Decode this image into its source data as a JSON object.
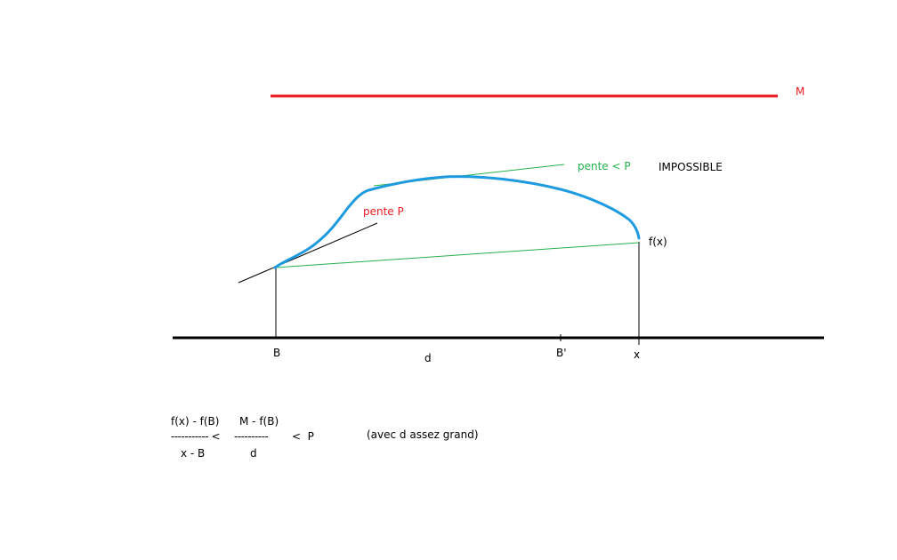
{
  "labels": {
    "m": "M",
    "pente_inf_p": "pente < P",
    "impossible": "IMPOSSIBLE",
    "pente_p": "pente P",
    "fx": "f(x)",
    "b": "B",
    "d": "d",
    "b_prime": "B'",
    "x": "x"
  },
  "formula": {
    "num_left": "f(x) - f(B)",
    "num_right": "M - f(B)",
    "dashes_left": "----------- <",
    "dashes_right": "----------",
    "less_p": "<  P",
    "den_left": "x - B",
    "den_right": "d",
    "note": "(avec d assez grand)"
  },
  "colors": {
    "red": "#ed1c24",
    "green": "#22b14c",
    "blue": "#1e9be0",
    "black": "#000000"
  }
}
